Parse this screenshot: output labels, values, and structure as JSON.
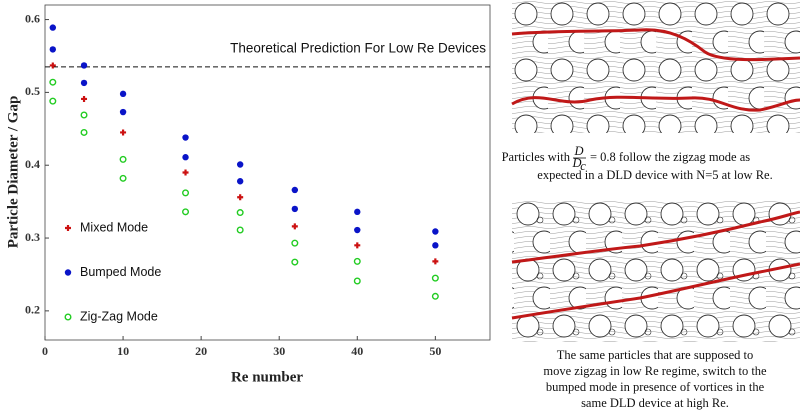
{
  "chart_data": {
    "type": "scatter",
    "xlabel": "Re number",
    "ylabel": "Particle Diameter / Gap",
    "xlim": [
      0,
      57
    ],
    "ylim": [
      0.16,
      0.62
    ],
    "xticks": [
      0,
      10,
      20,
      30,
      40,
      50
    ],
    "yticks": [
      0.2,
      0.3,
      0.4,
      0.5,
      0.6
    ],
    "legend": "left",
    "reference_line": {
      "value": 0.535,
      "label": "Theoretical Prediction For Low Re Devices"
    },
    "series": [
      {
        "name": "Mixed Mode",
        "color": "#cc1111",
        "marker": "plus",
        "x": [
          1,
          5,
          10,
          18,
          25,
          32,
          40,
          50
        ],
        "values": [
          0.537,
          0.491,
          0.445,
          0.39,
          0.356,
          0.316,
          0.29,
          0.268
        ]
      },
      {
        "name": "Bumped Mode",
        "color": "#0a14c8",
        "marker": "dot",
        "x": [
          1,
          1,
          5,
          5,
          10,
          10,
          18,
          18,
          25,
          25,
          32,
          32,
          40,
          40,
          50,
          50
        ],
        "values": [
          0.589,
          0.559,
          0.537,
          0.513,
          0.498,
          0.473,
          0.438,
          0.411,
          0.401,
          0.378,
          0.366,
          0.34,
          0.336,
          0.311,
          0.309,
          0.29
        ]
      },
      {
        "name": "Zig-Zag Mode",
        "color": "#22cc22",
        "marker": "circle",
        "x": [
          1,
          1,
          5,
          5,
          10,
          10,
          18,
          18,
          25,
          25,
          32,
          32,
          40,
          40,
          50,
          50
        ],
        "values": [
          0.514,
          0.488,
          0.469,
          0.445,
          0.408,
          0.382,
          0.362,
          0.336,
          0.335,
          0.311,
          0.293,
          0.267,
          0.268,
          0.241,
          0.245,
          0.22
        ]
      }
    ]
  },
  "figures": [
    {
      "caption": {
        "prefix": "Particles with",
        "numerator": "D",
        "denominator": "D",
        "subscript": "c",
        "rest": "= 0.8 follow the zigzag mode as",
        "line2": "expected in a DLD device with N=5 at low Re."
      }
    },
    {
      "caption": {
        "lines": [
          "The same particles that are supposed to",
          "move zigzag in low Re regime, switch to the",
          "bumped mode in presence of vortices in the",
          "same DLD device at high Re."
        ]
      }
    }
  ]
}
